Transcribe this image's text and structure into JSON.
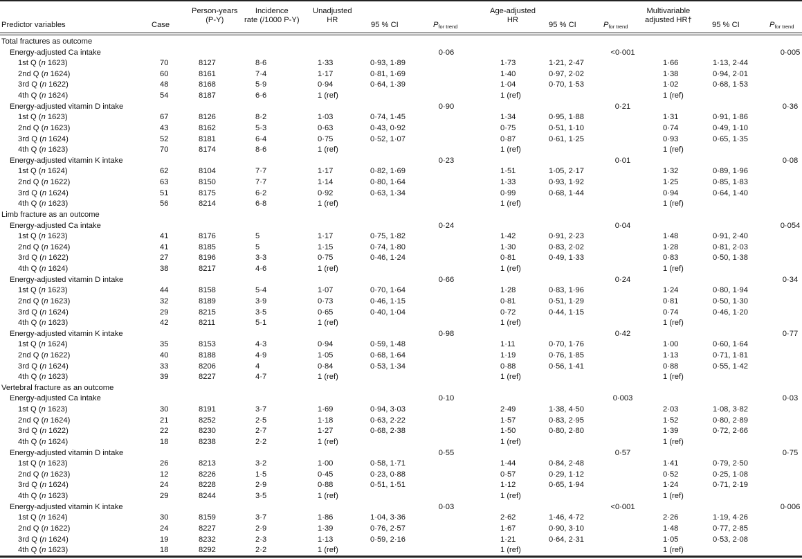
{
  "header": {
    "predictor": "Predictor variables",
    "case": "Case",
    "person_years": [
      "Person-years",
      "(P-Y)"
    ],
    "incidence": [
      "Incidence",
      "rate (/1000 P-Y)"
    ],
    "unadj_hr": [
      "Unadjusted",
      "HR"
    ],
    "ci": "95 % CI",
    "p_main": "P",
    "p_sub": "for trend",
    "age_hr": [
      "Age-adjusted",
      "HR"
    ],
    "multi_hr": [
      "Multivariable",
      "adjusted HR†"
    ]
  },
  "sections": [
    {
      "title": "Total fractures as outcome",
      "groups": [
        {
          "label": "Energy-adjusted Ca intake",
          "p_unadj": "0·06",
          "p_age": "<0·001",
          "p_multi": "0·005",
          "rows": [
            {
              "q": "1st Q",
              "n": "1623",
              "case": "70",
              "py": "8127",
              "inc": "8·6",
              "uhr": "1·33",
              "uci": "0·93, 1·89",
              "ahr": "1·73",
              "aci": "1·21, 2·47",
              "mhr": "1·66",
              "mci": "1·13, 2·44"
            },
            {
              "q": "2nd Q",
              "n": "1624",
              "case": "60",
              "py": "8161",
              "inc": "7·4",
              "uhr": "1·17",
              "uci": "0·81, 1·69",
              "ahr": "1·40",
              "aci": "0·97, 2·02",
              "mhr": "1·38",
              "mci": "0·94, 2·01"
            },
            {
              "q": "3rd Q",
              "n": "1622",
              "case": "48",
              "py": "8168",
              "inc": "5·9",
              "uhr": "0·94",
              "uci": "0·64, 1·39",
              "ahr": "1·04",
              "aci": "0·70, 1·53",
              "mhr": "1·02",
              "mci": "0·68, 1·53"
            },
            {
              "q": "4th Q",
              "n": "1624",
              "case": "54",
              "py": "8187",
              "inc": "6·6",
              "uhr": "1 (ref)",
              "uci": "",
              "ahr": "1 (ref)",
              "aci": "",
              "mhr": "1 (ref)",
              "mci": ""
            }
          ]
        },
        {
          "label": "Energy-adjusted vitamin D intake",
          "p_unadj": "0·90",
          "p_age": "0·21",
          "p_multi": "0·36",
          "rows": [
            {
              "q": "1st Q",
              "n": "1623",
              "case": "67",
              "py": "8126",
              "inc": "8·2",
              "uhr": "1·03",
              "uci": "0·74, 1·45",
              "ahr": "1·34",
              "aci": "0·95, 1·88",
              "mhr": "1·31",
              "mci": "0·91, 1·86"
            },
            {
              "q": "2nd Q",
              "n": "1623",
              "case": "43",
              "py": "8162",
              "inc": "5·3",
              "uhr": "0·63",
              "uci": "0·43, 0·92",
              "ahr": "0·75",
              "aci": "0·51, 1·10",
              "mhr": "0·74",
              "mci": "0·49, 1·10"
            },
            {
              "q": "3rd Q",
              "n": "1624",
              "case": "52",
              "py": "8181",
              "inc": "6·4",
              "uhr": "0·75",
              "uci": "0·52, 1·07",
              "ahr": "0·87",
              "aci": "0·61, 1·25",
              "mhr": "0·93",
              "mci": "0·65, 1·35"
            },
            {
              "q": "4th Q",
              "n": "1623",
              "case": "70",
              "py": "8174",
              "inc": "8·6",
              "uhr": "1 (ref)",
              "uci": "",
              "ahr": "1 (ref)",
              "aci": "",
              "mhr": "1 (ref)",
              "mci": ""
            }
          ]
        },
        {
          "label": "Energy-adjusted vitamin K intake",
          "p_unadj": "0·23",
          "p_age": "0·01",
          "p_multi": "0·08",
          "rows": [
            {
              "q": "1st Q",
              "n": "1624",
              "case": "62",
              "py": "8104",
              "inc": "7·7",
              "uhr": "1·17",
              "uci": "0·82, 1·69",
              "ahr": "1·51",
              "aci": "1·05, 2·17",
              "mhr": "1·32",
              "mci": "0·89, 1·96"
            },
            {
              "q": "2nd Q",
              "n": "1622",
              "case": "63",
              "py": "8150",
              "inc": "7·7",
              "uhr": "1·14",
              "uci": "0·80, 1·64",
              "ahr": "1·33",
              "aci": "0·93, 1·92",
              "mhr": "1·25",
              "mci": "0·85, 1·83"
            },
            {
              "q": "3rd Q",
              "n": "1624",
              "case": "51",
              "py": "8175",
              "inc": "6·2",
              "uhr": "0·92",
              "uci": "0·63, 1·34",
              "ahr": "0·99",
              "aci": "0·68, 1·44",
              "mhr": "0·94",
              "mci": "0·64, 1·40"
            },
            {
              "q": "4th Q",
              "n": "1623",
              "case": "56",
              "py": "8214",
              "inc": "6·8",
              "uhr": "1 (ref)",
              "uci": "",
              "ahr": "1 (ref)",
              "aci": "",
              "mhr": "1 (ref)",
              "mci": ""
            }
          ]
        }
      ]
    },
    {
      "title": "Limb fracture as an outcome",
      "groups": [
        {
          "label": "Energy-adjusted Ca intake",
          "p_unadj": "0·24",
          "p_age": "0·04",
          "p_multi": "0·054",
          "rows": [
            {
              "q": "1st Q",
              "n": "1623",
              "case": "41",
              "py": "8176",
              "inc": "5",
              "uhr": "1·17",
              "uci": "0·75, 1·82",
              "ahr": "1·42",
              "aci": "0·91, 2·23",
              "mhr": "1·48",
              "mci": "0·91, 2·40"
            },
            {
              "q": "2nd Q",
              "n": "1624",
              "case": "41",
              "py": "8185",
              "inc": "5",
              "uhr": "1·15",
              "uci": "0·74, 1·80",
              "ahr": "1·30",
              "aci": "0·83, 2·02",
              "mhr": "1·28",
              "mci": "0·81, 2·03"
            },
            {
              "q": "3rd Q",
              "n": "1622",
              "case": "27",
              "py": "8196",
              "inc": "3·3",
              "uhr": "0·75",
              "uci": "0·46, 1·24",
              "ahr": "0·81",
              "aci": "0·49, 1·33",
              "mhr": "0·83",
              "mci": "0·50, 1·38"
            },
            {
              "q": "4th Q",
              "n": "1624",
              "case": "38",
              "py": "8217",
              "inc": "4·6",
              "uhr": "1 (ref)",
              "uci": "",
              "ahr": "1 (ref)",
              "aci": "",
              "mhr": "1 (ref)",
              "mci": ""
            }
          ]
        },
        {
          "label": "Energy-adjusted vitamin D intake",
          "p_unadj": "0·66",
          "p_age": "0·24",
          "p_multi": "0·34",
          "rows": [
            {
              "q": "1st Q",
              "n": "1623",
              "case": "44",
              "py": "8158",
              "inc": "5·4",
              "uhr": "1·07",
              "uci": "0·70, 1·64",
              "ahr": "1·28",
              "aci": "0·83, 1·96",
              "mhr": "1·24",
              "mci": "0·80, 1·94"
            },
            {
              "q": "2nd Q",
              "n": "1623",
              "case": "32",
              "py": "8189",
              "inc": "3·9",
              "uhr": "0·73",
              "uci": "0·46, 1·15",
              "ahr": "0·81",
              "aci": "0·51, 1·29",
              "mhr": "0·81",
              "mci": "0·50, 1·30"
            },
            {
              "q": "3rd Q",
              "n": "1624",
              "case": "29",
              "py": "8215",
              "inc": "3·5",
              "uhr": "0·65",
              "uci": "0·40, 1·04",
              "ahr": "0·72",
              "aci": "0·44, 1·15",
              "mhr": "0·74",
              "mci": "0·46, 1·20"
            },
            {
              "q": "4th Q",
              "n": "1623",
              "case": "42",
              "py": "8211",
              "inc": "5·1",
              "uhr": "1 (ref)",
              "uci": "",
              "ahr": "1 (ref)",
              "aci": "",
              "mhr": "1 (ref)",
              "mci": ""
            }
          ]
        },
        {
          "label": "Energy-adjusted vitamin K intake",
          "p_unadj": "0·98",
          "p_age": "0·42",
          "p_multi": "0·77",
          "rows": [
            {
              "q": "1st Q",
              "n": "1624",
              "case": "35",
              "py": "8153",
              "inc": "4·3",
              "uhr": "0·94",
              "uci": "0·59, 1·48",
              "ahr": "1·11",
              "aci": "0·70, 1·76",
              "mhr": "1·00",
              "mci": "0·60, 1·64"
            },
            {
              "q": "2nd Q",
              "n": "1622",
              "case": "40",
              "py": "8188",
              "inc": "4·9",
              "uhr": "1·05",
              "uci": "0·68, 1·64",
              "ahr": "1·19",
              "aci": "0·76, 1·85",
              "mhr": "1·13",
              "mci": "0·71, 1·81"
            },
            {
              "q": "3rd Q",
              "n": "1624",
              "case": "33",
              "py": "8206",
              "inc": "4",
              "uhr": "0·84",
              "uci": "0·53, 1·34",
              "ahr": "0·88",
              "aci": "0·56, 1·41",
              "mhr": "0·88",
              "mci": "0·55, 1·42"
            },
            {
              "q": "4th Q",
              "n": "1623",
              "case": "39",
              "py": "8227",
              "inc": "4·7",
              "uhr": "1 (ref)",
              "uci": "",
              "ahr": "1 (ref)",
              "aci": "",
              "mhr": "1 (ref)",
              "mci": ""
            }
          ]
        }
      ]
    },
    {
      "title": "Vertebral fracture as an outcome",
      "groups": [
        {
          "label": "Energy-adjusted Ca intake",
          "p_unadj": "0·10",
          "p_age": "0·003",
          "p_multi": "0·03",
          "rows": [
            {
              "q": "1st Q",
              "n": "1623",
              "case": "30",
              "py": "8191",
              "inc": "3·7",
              "uhr": "1·69",
              "uci": "0·94, 3·03",
              "ahr": "2·49",
              "aci": "1·38, 4·50",
              "mhr": "2·03",
              "mci": "1·08, 3·82"
            },
            {
              "q": "2nd Q",
              "n": "1624",
              "case": "21",
              "py": "8252",
              "inc": "2·5",
              "uhr": "1·18",
              "uci": "0·63, 2·22",
              "ahr": "1·57",
              "aci": "0·83, 2·95",
              "mhr": "1·52",
              "mci": "0·80, 2·89"
            },
            {
              "q": "3rd Q",
              "n": "1622",
              "case": "22",
              "py": "8230",
              "inc": "2·7",
              "uhr": "1·27",
              "uci": "0·68, 2·38",
              "ahr": "1·50",
              "aci": "0·80, 2·80",
              "mhr": "1·39",
              "mci": "0·72, 2·66"
            },
            {
              "q": "4th Q",
              "n": "1624",
              "case": "18",
              "py": "8238",
              "inc": "2·2",
              "uhr": "1 (ref)",
              "uci": "",
              "ahr": "1 (ref)",
              "aci": "",
              "mhr": "1 (ref)",
              "mci": ""
            }
          ]
        },
        {
          "label": "Energy-adjusted vitamin D intake",
          "p_unadj": "0·55",
          "p_age": "0·57",
          "p_multi": "0·75",
          "rows": [
            {
              "q": "1st Q",
              "n": "1623",
              "case": "26",
              "py": "8213",
              "inc": "3·2",
              "uhr": "1·00",
              "uci": "0·58, 1·71",
              "ahr": "1·44",
              "aci": "0·84, 2·48",
              "mhr": "1·41",
              "mci": "0·79, 2·50"
            },
            {
              "q": "2nd Q",
              "n": "1623",
              "case": "12",
              "py": "8226",
              "inc": "1·5",
              "uhr": "0·45",
              "uci": "0·23, 0·88",
              "ahr": "0·57",
              "aci": "0·29, 1·12",
              "mhr": "0·52",
              "mci": "0·25, 1·08"
            },
            {
              "q": "3rd Q",
              "n": "1624",
              "case": "24",
              "py": "8228",
              "inc": "2·9",
              "uhr": "0·88",
              "uci": "0·51, 1·51",
              "ahr": "1·12",
              "aci": "0·65, 1·94",
              "mhr": "1·24",
              "mci": "0·71, 2·19"
            },
            {
              "q": "4th Q",
              "n": "1623",
              "case": "29",
              "py": "8244",
              "inc": "3·5",
              "uhr": "1 (ref)",
              "uci": "",
              "ahr": "1 (ref)",
              "aci": "",
              "mhr": "1 (ref)",
              "mci": ""
            }
          ]
        },
        {
          "label": "Energy-adjusted vitamin K intake",
          "p_unadj": "0·03",
          "p_age": "<0·001",
          "p_multi": "0·006",
          "rows": [
            {
              "q": "1st Q",
              "n": "1624",
              "case": "30",
              "py": "8159",
              "inc": "3·7",
              "uhr": "1·86",
              "uci": "1·04, 3·36",
              "ahr": "2·62",
              "aci": "1·46, 4·72",
              "mhr": "2·26",
              "mci": "1·19, 4·26"
            },
            {
              "q": "2nd Q",
              "n": "1622",
              "case": "24",
              "py": "8227",
              "inc": "2·9",
              "uhr": "1·39",
              "uci": "0·76, 2·57",
              "ahr": "1·67",
              "aci": "0·90, 3·10",
              "mhr": "1·48",
              "mci": "0·77, 2·85"
            },
            {
              "q": "3rd Q",
              "n": "1624",
              "case": "19",
              "py": "8232",
              "inc": "2·3",
              "uhr": "1·13",
              "uci": "0·59, 2·16",
              "ahr": "1·21",
              "aci": "0·64, 2·31",
              "mhr": "1·05",
              "mci": "0·53, 2·08"
            },
            {
              "q": "4th Q",
              "n": "1623",
              "case": "18",
              "py": "8292",
              "inc": "2·2",
              "uhr": "1 (ref)",
              "uci": "",
              "ahr": "1 (ref)",
              "aci": "",
              "mhr": "1 (ref)",
              "mci": ""
            }
          ]
        }
      ]
    }
  ]
}
